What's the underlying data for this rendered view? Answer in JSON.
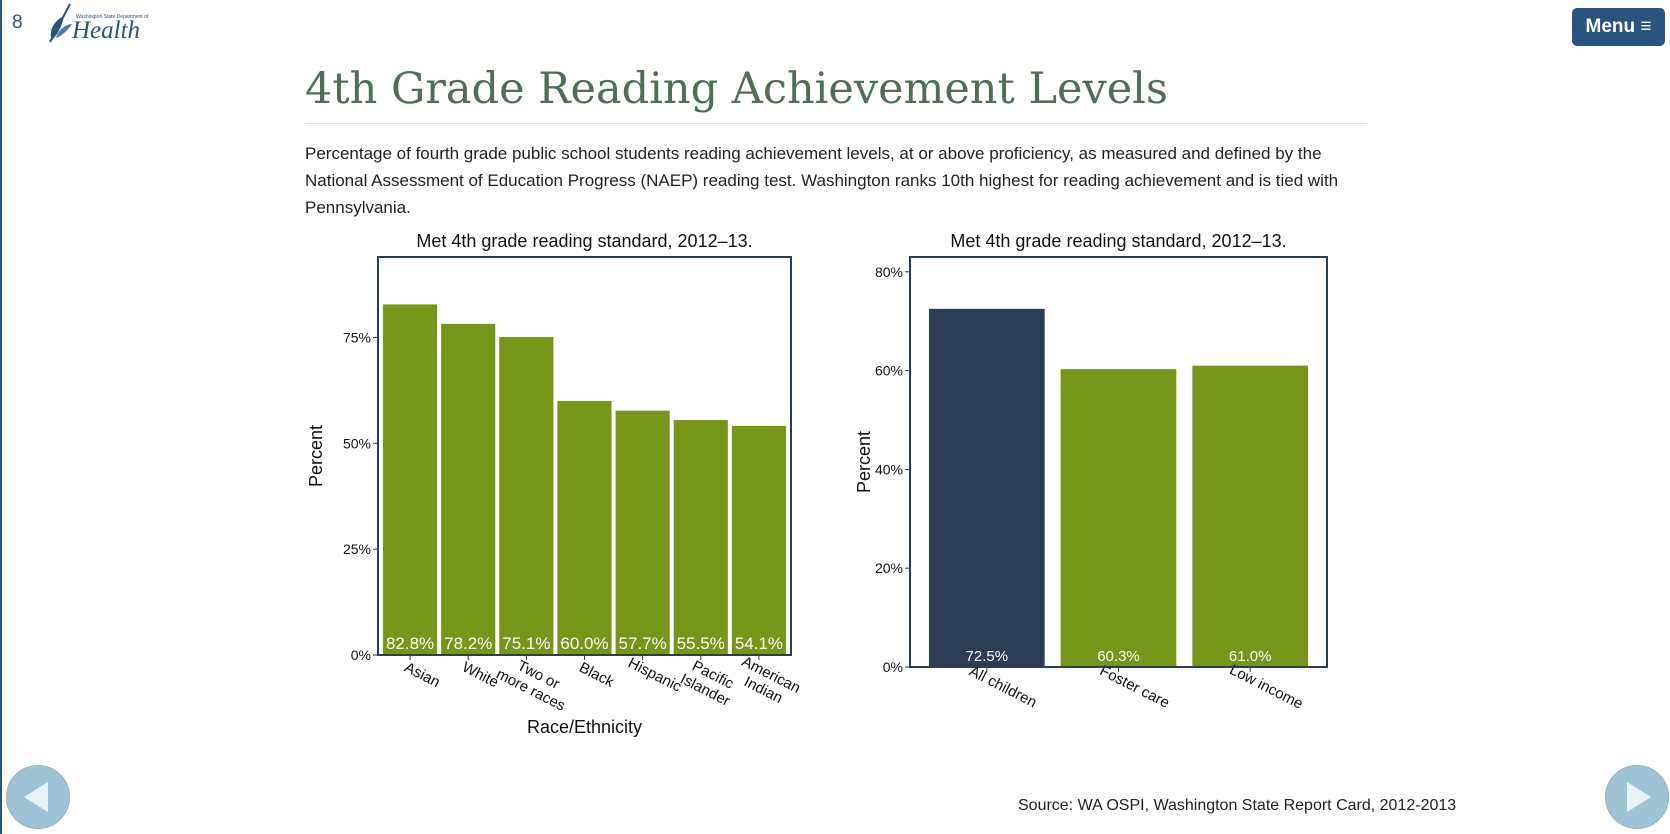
{
  "page": {
    "number": "8",
    "logo_small_text": "Washington State Department of",
    "logo_big_text": "Health",
    "menu_label": "Menu ≡",
    "title": "4th Grade Reading Achievement Levels",
    "description": "Percentage of fourth grade public school students reading achievement levels, at or above proficiency, as measured and defined by the National Assessment of Education Progress (NAEP) reading test. Washington ranks 10th highest for reading achievement and is tied with Pennsylvania.",
    "source": "Source: WA OSPI, Washington State Report Card, 2012-2013"
  },
  "colors": {
    "accent": "#2a5380",
    "green": "#76961a",
    "navy": "#2b3d54",
    "title_green": "#4e6e58"
  },
  "chart_data": [
    {
      "type": "bar",
      "title": "Met 4th grade reading standard, 2012–13.",
      "xlabel": "Race/Ethnicity",
      "ylabel": "Percent",
      "ylim": [
        0,
        94
      ],
      "yticks": [
        0,
        25,
        50,
        75
      ],
      "ytick_labels": [
        "0%",
        "25%",
        "50%",
        "75%"
      ],
      "categories": [
        [
          "Asian"
        ],
        [
          "White"
        ],
        [
          "Two or",
          "more races"
        ],
        [
          "Black"
        ],
        [
          "Hispanic"
        ],
        [
          "Pacific",
          "Islander"
        ],
        [
          "American",
          "Indian"
        ]
      ],
      "values": [
        82.8,
        78.2,
        75.1,
        60.0,
        57.7,
        55.5,
        54.1
      ],
      "value_labels": [
        "82.8%",
        "78.2%",
        "75.1%",
        "60.0%",
        "57.7%",
        "55.5%",
        "54.1%"
      ],
      "bar_colors": [
        "#76961a",
        "#76961a",
        "#76961a",
        "#76961a",
        "#76961a",
        "#76961a",
        "#76961a"
      ]
    },
    {
      "type": "bar",
      "title": "Met 4th grade reading standard, 2012–13.",
      "xlabel": "",
      "ylabel": "Percent",
      "ylim": [
        0,
        83
      ],
      "yticks": [
        0,
        20,
        40,
        60,
        80
      ],
      "ytick_labels": [
        "0%",
        "20%",
        "40%",
        "60%",
        "80%"
      ],
      "categories": [
        [
          "All children"
        ],
        [
          "Foster care"
        ],
        [
          "Low income"
        ]
      ],
      "values": [
        72.5,
        60.3,
        61.0
      ],
      "value_labels": [
        "72.5%",
        "60.3%",
        "61.0%"
      ],
      "bar_colors": [
        "#2b3d54",
        "#76961a",
        "#76961a"
      ]
    }
  ]
}
